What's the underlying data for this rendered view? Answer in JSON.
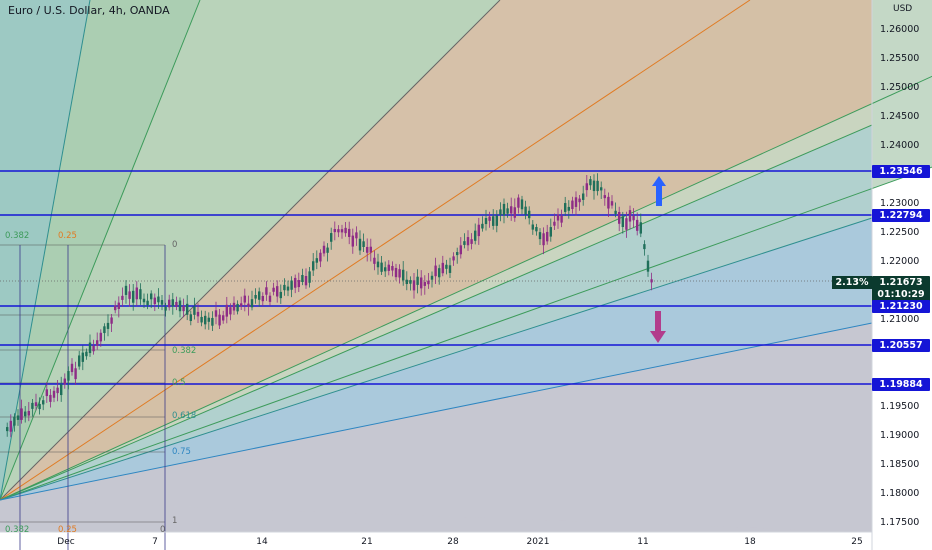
{
  "title": "Euro / U.S. Dollar, 4h, OANDA",
  "axis_unit": "USD",
  "y_ticks": [
    "1.26000",
    "1.25500",
    "1.25000",
    "1.24500",
    "1.24000",
    "1.23000",
    "1.22500",
    "1.22000",
    "1.21000",
    "1.19500",
    "1.19000",
    "1.18500",
    "1.18000",
    "1.17500"
  ],
  "x_ticks": [
    "Dec",
    "7",
    "14",
    "21",
    "28",
    "2021",
    "11",
    "18",
    "25"
  ],
  "price_levels": [
    {
      "label": "1.23546",
      "color": "#1515d6"
    },
    {
      "label": "1.22794",
      "color": "#1515d6"
    },
    {
      "label": "1.21230",
      "color": "#1515d6"
    },
    {
      "label": "1.20557",
      "color": "#1515d6"
    },
    {
      "label": "1.19884",
      "color": "#1515d6"
    }
  ],
  "current_price": {
    "label": "1.21673",
    "change": "2.13%",
    "timer": "01:10:29",
    "color": "#0b3a2e"
  },
  "fib_labels_top": [
    "0.382",
    "0.25",
    "0"
  ],
  "fib_labels_mid": [
    "0.382",
    "0.5",
    "0.618",
    "0.75"
  ],
  "fib_labels_bottom": [
    "0.382",
    "0.25",
    "0",
    "1"
  ],
  "colors": {
    "up_arrow": "#2962ff",
    "down_arrow": "#b23c8c",
    "candle_up": "#1f6f5a",
    "candle_down": "#8e2c86",
    "level_line": "#1515d6"
  }
}
